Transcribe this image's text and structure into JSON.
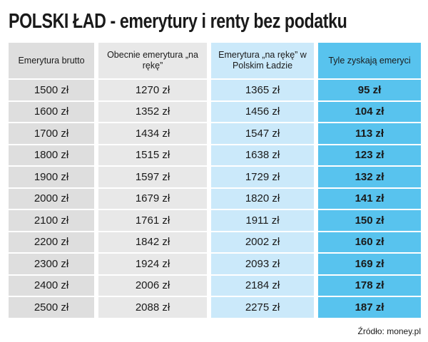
{
  "header": {
    "title": "POLSKI ŁAD - emerytury i renty bez podatku"
  },
  "table": {
    "columns": [
      "Emerytura brutto",
      "Obecnie emerytura „na rękę”",
      "Emerytura „na rękę” w Polskim Ładzie",
      "Tyle zyskają emeryci"
    ],
    "rows": [
      [
        "1500 zł",
        "1270 zł",
        "1365 zł",
        "95 zł"
      ],
      [
        "1600 zł",
        "1352 zł",
        "1456 zł",
        "104 zł"
      ],
      [
        "1700 zł",
        "1434 zł",
        "1547 zł",
        "113 zł"
      ],
      [
        "1800 zł",
        "1515 zł",
        "1638 zł",
        "123 zł"
      ],
      [
        "1900 zł",
        "1597 zł",
        "1729 zł",
        "132 zł"
      ],
      [
        "2000 zł",
        "1679 zł",
        "1820 zł",
        "141 zł"
      ],
      [
        "2100 zł",
        "1761 zł",
        "1911 zł",
        "150 zł"
      ],
      [
        "2200 zł",
        "1842 zł",
        "2002 zł",
        "160 zł"
      ],
      [
        "2300 zł",
        "1924 zł",
        "2093 zł",
        "169 zł"
      ],
      [
        "2400 zł",
        "2006 zł",
        "2184 zł",
        "178 zł"
      ],
      [
        "2500 zł",
        "2088 zł",
        "2275 zł",
        "187 zł"
      ]
    ]
  },
  "footer": {
    "source": "Źródło: money.pl"
  }
}
